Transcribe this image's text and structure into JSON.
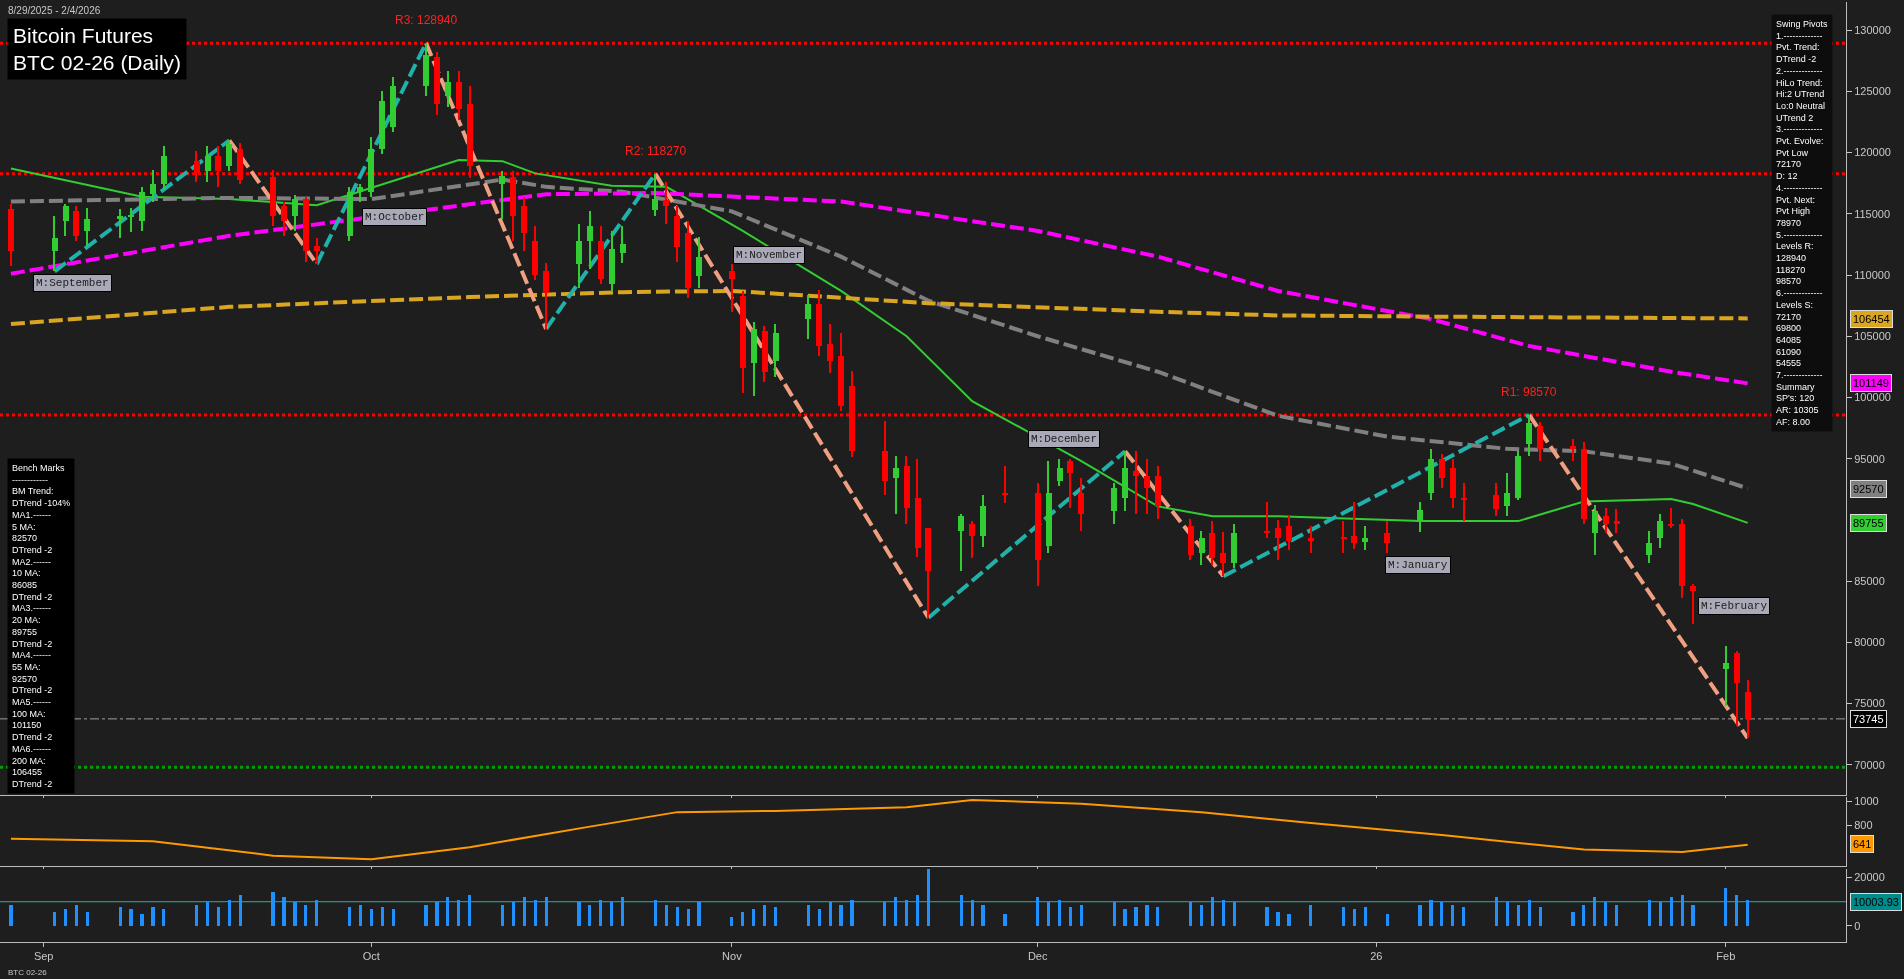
{
  "chart_data": [
    {
      "type": "candlestick",
      "title": "Bitcoin Futures",
      "subtitle": "BTC 02-26 (Daily)",
      "x": [
        "2025-08-29",
        "2025-09-02",
        "2025-09-03",
        "2025-09-04",
        "2025-09-05",
        "2025-09-08",
        "2025-09-09",
        "2025-09-10",
        "2025-09-11",
        "2025-09-12",
        "2025-09-15",
        "2025-09-16",
        "2025-09-17",
        "2025-09-18",
        "2025-09-19",
        "2025-09-22",
        "2025-09-23",
        "2025-09-24",
        "2025-09-25",
        "2025-09-26",
        "2025-09-29",
        "2025-09-30",
        "2025-10-01",
        "2025-10-02",
        "2025-10-03",
        "2025-10-06",
        "2025-10-07",
        "2025-10-08",
        "2025-10-09",
        "2025-10-10",
        "2025-10-13",
        "2025-10-14",
        "2025-10-15",
        "2025-10-16",
        "2025-10-17",
        "2025-10-20",
        "2025-10-21",
        "2025-10-22",
        "2025-10-23",
        "2025-10-24",
        "2025-10-27",
        "2025-10-28",
        "2025-10-29",
        "2025-10-30",
        "2025-10-31",
        "2025-11-03",
        "2025-11-04",
        "2025-11-05",
        "2025-11-06",
        "2025-11-07",
        "2025-11-10",
        "2025-11-11",
        "2025-11-12",
        "2025-11-13",
        "2025-11-14",
        "2025-11-17",
        "2025-11-18",
        "2025-11-19",
        "2025-11-20",
        "2025-11-21",
        "2025-11-24",
        "2025-11-25",
        "2025-11-26",
        "2025-11-28",
        "2025-12-01",
        "2025-12-02",
        "2025-12-03",
        "2025-12-04",
        "2025-12-05",
        "2025-12-08",
        "2025-12-09",
        "2025-12-10",
        "2025-12-11",
        "2025-12-12",
        "2025-12-15",
        "2025-12-16",
        "2025-12-17",
        "2025-12-18",
        "2025-12-19",
        "2025-12-22",
        "2025-12-23",
        "2025-12-24",
        "2025-12-26",
        "2025-12-29",
        "2025-12-30",
        "2025-12-31",
        "2026-01-02",
        "2026-01-05",
        "2026-01-06",
        "2026-01-07",
        "2026-01-08",
        "2026-01-09",
        "2026-01-12",
        "2026-01-13",
        "2026-01-14",
        "2026-01-15",
        "2026-01-16",
        "2026-01-19",
        "2026-01-20",
        "2026-01-21",
        "2026-01-22",
        "2026-01-23",
        "2026-01-26",
        "2026-01-27",
        "2026-01-28",
        "2026-01-29",
        "2026-01-30",
        "2026-02-02",
        "2026-02-03",
        "2026-02-04"
      ],
      "ohlc": [
        [
          115400,
          115800,
          110700,
          112000
        ],
        [
          112000,
          114800,
          110300,
          113000
        ],
        [
          114400,
          115800,
          113200,
          115600
        ],
        [
          115200,
          115600,
          112800,
          113200
        ],
        [
          113600,
          115500,
          112400,
          114600
        ],
        [
          114600,
          115400,
          113000,
          114800
        ],
        [
          114700,
          115500,
          113500,
          114900
        ],
        [
          114400,
          117200,
          113600,
          116800
        ],
        [
          116600,
          118600,
          116000,
          117400
        ],
        [
          117400,
          120500,
          117000,
          119700
        ],
        [
          119300,
          120100,
          117600,
          118300
        ],
        [
          118500,
          120500,
          117600,
          119700
        ],
        [
          119700,
          120500,
          117200,
          118500
        ],
        [
          118900,
          121000,
          118500,
          120700
        ],
        [
          120300,
          120800,
          117400,
          117800
        ],
        [
          118000,
          118600,
          114000,
          114800
        ],
        [
          115600,
          116000,
          113200,
          114400
        ],
        [
          114800,
          116500,
          113600,
          116200
        ],
        [
          116200,
          116400,
          111100,
          112000
        ],
        [
          112400,
          113000,
          110900,
          112000
        ],
        [
          113200,
          117200,
          112800,
          116800
        ],
        [
          116800,
          117400,
          116000,
          117200
        ],
        [
          116800,
          121300,
          116400,
          120300
        ],
        [
          120300,
          125000,
          119900,
          124200
        ],
        [
          122100,
          126200,
          121700,
          125400
        ],
        [
          125400,
          128940,
          124600,
          128000
        ],
        [
          127800,
          128200,
          123100,
          124000
        ],
        [
          124600,
          126700,
          123700,
          125800
        ],
        [
          125800,
          126700,
          122700,
          123600
        ],
        [
          124000,
          125400,
          117900,
          118900
        ],
        [
          117400,
          118500,
          114600,
          118100
        ],
        [
          118000,
          118500,
          112800,
          114800
        ],
        [
          115600,
          116400,
          112000,
          113400
        ],
        [
          112800,
          114000,
          109600,
          110000
        ],
        [
          110300,
          111000,
          105600,
          108500
        ],
        [
          110900,
          114200,
          108900,
          112800
        ],
        [
          112800,
          115200,
          110500,
          114000
        ],
        [
          112800,
          114000,
          109300,
          109700
        ],
        [
          109300,
          113600,
          108600,
          112100
        ],
        [
          111800,
          114000,
          111000,
          112500
        ],
        [
          115300,
          118270,
          114800,
          116200
        ],
        [
          116100,
          117600,
          114200,
          115600
        ],
        [
          114800,
          115600,
          111100,
          112300
        ],
        [
          113400,
          114400,
          108100,
          108900
        ],
        [
          109900,
          113100,
          108900,
          111500
        ],
        [
          110300,
          110900,
          107000,
          109700
        ],
        [
          108300,
          108700,
          100400,
          102400
        ],
        [
          102800,
          106200,
          100100,
          105600
        ],
        [
          105400,
          105800,
          101300,
          102100
        ],
        [
          103000,
          106000,
          101700,
          105300
        ],
        [
          106400,
          108400,
          104800,
          107600
        ],
        [
          107600,
          108800,
          103400,
          104200
        ],
        [
          104400,
          106000,
          102000,
          103000
        ],
        [
          103400,
          105300,
          98900,
          99300
        ],
        [
          100900,
          102200,
          95100,
          95600
        ],
        [
          95600,
          98100,
          92000,
          93200
        ],
        [
          93400,
          95200,
          90500,
          94200
        ],
        [
          94400,
          95200,
          89700,
          91000
        ],
        [
          91800,
          95000,
          87000,
          87700
        ],
        [
          89300,
          89300,
          82000,
          85800
        ],
        [
          89100,
          90500,
          85800,
          90300
        ],
        [
          89700,
          89900,
          86900,
          88700
        ],
        [
          88700,
          92000,
          87800,
          91100
        ],
        [
          92200,
          94400,
          91400,
          92100
        ],
        [
          92200,
          93000,
          84600,
          86700
        ],
        [
          87900,
          94800,
          87300,
          92200
        ],
        [
          93200,
          95000,
          92800,
          94200
        ],
        [
          94800,
          95000,
          91000,
          93800
        ],
        [
          92200,
          93400,
          89100,
          90500
        ],
        [
          90700,
          93000,
          89700,
          92600
        ],
        [
          91800,
          95600,
          90700,
          94200
        ],
        [
          94000,
          95600,
          90500,
          93600
        ],
        [
          93600,
          95000,
          90500,
          92600
        ],
        [
          93600,
          94400,
          90100,
          91100
        ],
        [
          89500,
          90100,
          86700,
          87100
        ],
        [
          87300,
          89100,
          86300,
          88500
        ],
        [
          88900,
          89900,
          86300,
          86900
        ],
        [
          87300,
          89000,
          85400,
          86500
        ],
        [
          86500,
          89700,
          86100,
          88900
        ],
        [
          89100,
          91500,
          88500,
          88900
        ],
        [
          89300,
          90000,
          86700,
          88500
        ],
        [
          89500,
          90300,
          87500,
          88300
        ],
        [
          88500,
          89500,
          87300,
          88300
        ],
        [
          88600,
          89900,
          87300,
          88400
        ],
        [
          88700,
          91500,
          87600,
          88100
        ],
        [
          88200,
          89500,
          87500,
          88500
        ],
        [
          88900,
          89900,
          87300,
          88100
        ],
        [
          89800,
          91500,
          89000,
          90800
        ],
        [
          92200,
          95800,
          91600,
          95000
        ],
        [
          95000,
          95400,
          92600,
          93400
        ],
        [
          94200,
          95000,
          91000,
          91800
        ],
        [
          91800,
          93000,
          89900,
          91600
        ],
        [
          92000,
          93000,
          90300,
          90900
        ],
        [
          91100,
          93800,
          90300,
          92200
        ],
        [
          91800,
          95600,
          91600,
          95200
        ],
        [
          96200,
          98570,
          95200,
          97900
        ],
        [
          97700,
          98000,
          94800,
          95800
        ],
        [
          96000,
          96600,
          94800,
          95800
        ],
        [
          95800,
          96400,
          89700,
          90100
        ],
        [
          88900,
          91200,
          87100,
          90700
        ],
        [
          90300,
          91000,
          88900,
          89700
        ],
        [
          89900,
          90900,
          88900,
          89700
        ],
        [
          87100,
          89100,
          86500,
          88100
        ],
        [
          88500,
          90500,
          87700,
          89900
        ],
        [
          89700,
          91000,
          89300,
          89500
        ],
        [
          89700,
          90100,
          83600,
          84600
        ],
        [
          84600,
          84800,
          81500,
          84200
        ],
        [
          77800,
          79700,
          74800,
          78300
        ],
        [
          79100,
          79300,
          73200,
          76700
        ],
        [
          75900,
          76900,
          72170,
          73745
        ]
      ],
      "colors": [
        "#ff0000",
        "#32cd32",
        "#32cd32",
        "#ff0000",
        "#32cd32",
        "#32cd32",
        "#32cd32",
        "#32cd32",
        "#32cd32",
        "#32cd32",
        "#ff0000",
        "#32cd32",
        "#ff0000",
        "#32cd32",
        "#ff0000",
        "#ff0000",
        "#ff0000",
        "#32cd32",
        "#ff0000",
        "#ff0000",
        "#32cd32",
        "#32cd32",
        "#32cd32",
        "#32cd32",
        "#32cd32",
        "#32cd32",
        "#ff0000",
        "#32cd32",
        "#ff0000",
        "#ff0000",
        "#32cd32",
        "#ff0000",
        "#ff0000",
        "#ff0000",
        "#ff0000",
        "#32cd32",
        "#32cd32",
        "#ff0000",
        "#32cd32",
        "#32cd32",
        "#32cd32",
        "#ff0000",
        "#ff0000",
        "#ff0000",
        "#32cd32",
        "#ff0000",
        "#ff0000",
        "#32cd32",
        "#ff0000",
        "#32cd32",
        "#32cd32",
        "#ff0000",
        "#ff0000",
        "#ff0000",
        "#ff0000",
        "#ff0000",
        "#32cd32",
        "#ff0000",
        "#ff0000",
        "#ff0000",
        "#32cd32",
        "#ff0000",
        "#32cd32",
        "#ff0000",
        "#ff0000",
        "#32cd32",
        "#32cd32",
        "#ff0000",
        "#ff0000",
        "#32cd32",
        "#32cd32",
        "#ff0000",
        "#ff0000",
        "#ff0000",
        "#ff0000",
        "#32cd32",
        "#ff0000",
        "#ff0000",
        "#32cd32",
        "#ff0000",
        "#ff0000",
        "#ff0000",
        "#ff0000",
        "#ff0000",
        "#ff0000",
        "#32cd32",
        "#ff0000",
        "#32cd32",
        "#32cd32",
        "#ff0000",
        "#ff0000",
        "#ff0000",
        "#ff0000",
        "#32cd32",
        "#32cd32",
        "#32cd32",
        "#ff0000",
        "#ff0000",
        "#ff0000",
        "#32cd32",
        "#ff0000",
        "#ff0000",
        "#32cd32",
        "#32cd32",
        "#ff0000",
        "#ff0000",
        "#ff0000",
        "#32cd32",
        "#ff0000",
        "#ff0000"
      ],
      "series": [
        {
          "type": "line",
          "color": "#32cd32",
          "line_style": "solid",
          "x": [
            "2025-08-29",
            "2025-09-10",
            "2025-09-18",
            "2025-09-26",
            "2025-10-09",
            "2025-10-13",
            "2025-10-16",
            "2025-10-23",
            "2025-10-28",
            "2025-11-04",
            "2025-11-13",
            "2025-11-19",
            "2025-11-25",
            "2025-12-05",
            "2025-12-12",
            "2025-12-17",
            "2025-12-23",
            "2026-01-05",
            "2026-01-14",
            "2026-01-20",
            "2026-01-28",
            "2026-01-30",
            "2026-02-04"
          ],
          "values": [
            118700,
            116400,
            116200,
            115700,
            119400,
            119300,
            118300,
            117300,
            117200,
            113600,
            108700,
            105000,
            99700,
            94800,
            91100,
            90300,
            90300,
            89900,
            89900,
            91500,
            91700,
            91300,
            89755
          ]
        },
        {
          "type": "line",
          "color": "#808080",
          "line_style": "dashed",
          "x": [
            "2025-08-29",
            "2025-09-18",
            "2025-10-01",
            "2025-10-13",
            "2025-10-17",
            "2025-10-24",
            "2025-11-03",
            "2025-11-13",
            "2025-11-21",
            "2025-12-01",
            "2025-12-12",
            "2025-12-23",
            "2026-01-02",
            "2026-01-13",
            "2026-01-20",
            "2026-01-28",
            "2026-02-04"
          ],
          "values": [
            116000,
            116300,
            116200,
            117800,
            117200,
            116800,
            115200,
            111500,
            107900,
            105000,
            102100,
            98500,
            96800,
            95800,
            95600,
            94600,
            92570
          ]
        },
        {
          "type": "line",
          "color": "#ff00ff",
          "line_style": "dashed",
          "x": [
            "2025-08-29",
            "2025-09-18",
            "2025-10-17",
            "2025-10-27",
            "2025-11-13",
            "2025-12-01",
            "2025-12-12",
            "2025-12-23",
            "2026-01-06",
            "2026-01-15",
            "2026-01-28",
            "2026-02-04"
          ],
          "values": [
            110100,
            113200,
            116600,
            116700,
            116000,
            113600,
            111500,
            108700,
            106400,
            104200,
            102100,
            101149
          ]
        },
        {
          "type": "line",
          "color": "#daa520",
          "line_style": "dashed",
          "x": [
            "2025-08-29",
            "2025-09-18",
            "2025-10-10",
            "2025-10-24",
            "2025-11-03",
            "2025-11-21",
            "2025-12-12",
            "2025-12-23",
            "2026-01-06",
            "2026-02-04"
          ],
          "values": [
            106000,
            107400,
            108200,
            108600,
            108700,
            107700,
            107000,
            106700,
            106600,
            106454
          ]
        },
        {
          "type": "line",
          "color": "#20b2aa",
          "line_style": "dashed",
          "x": [
            "2025-09-02",
            "2025-09-18",
            "2025-09-22",
            "2025-09-26",
            "2025-10-06",
            "2025-10-10",
            "2025-10-17",
            "2025-10-27",
            "2025-11-03",
            "2025-11-21",
            "2025-12-09",
            "2025-12-12",
            "2025-12-18",
            "2026-01-15"
          ],
          "values": [
            110300,
            121000,
            null,
            110900,
            128940,
            null,
            105600,
            118270,
            null,
            82000,
            95600,
            null,
            85400,
            98570
          ]
        },
        {
          "type": "line",
          "color": "#f0a080",
          "line_style": "dashed",
          "x": [
            "2025-09-18",
            "2025-09-26",
            "2025-09-29",
            "2025-10-06",
            "2025-10-17",
            "2025-10-20",
            "2025-10-27",
            "2025-11-21",
            "2025-11-24",
            "2025-12-09",
            "2025-12-18",
            "2025-12-22",
            "2026-01-15",
            "2026-02-04"
          ],
          "values": [
            121000,
            110900,
            null,
            128940,
            105600,
            null,
            118270,
            82000,
            null,
            95600,
            85400,
            null,
            98570,
            72170
          ]
        }
      ],
      "ref_lines": [
        {
          "axis": "y",
          "value": 128940,
          "color": "#ff0000",
          "line_style": "dotted"
        },
        {
          "axis": "y",
          "value": 118270,
          "color": "#ff0000",
          "line_style": "dotted"
        },
        {
          "axis": "y",
          "value": 98570,
          "color": "#ff0000",
          "line_style": "dotted"
        },
        {
          "axis": "y",
          "value": 73745,
          "color": "#a0a0a0",
          "line_style": "dashdot"
        },
        {
          "axis": "y",
          "value": 69800,
          "color": "#00a000",
          "line_style": "dotted"
        }
      ],
      "annotations": [
        "8/29/2025 - 2/4/2026",
        "Bench Marks\n------------\nBM Trend:\nDTrend -104%\nMA1.------\n5 MA:\n82570\nDTrend -2\nMA2.------\n10 MA:\n86085\nDTrend -2\nMA3.------\n20 MA:\n89755\nDTrend -2\nMA4.------\n55 MA:\n92570\nDTrend -2\nMA5.------\n100 MA:\n101150\nDTrend -2\nMA6.------\n200 MA:\n106455\nDTrend -2",
        "Swing Pivots\n1.-------------\nPvt. Trend:\nDTrend -2\n2.-------------\nHiLo Trend:\nHi:2 UTrend\nLo:0 Neutral\nUTrend 2\n3.-------------\nPvt. Evolve:\nPvt Low\n72170\nD: 12\n4.-------------\nPvt. Next:\nPvt High\n78970\n5.-------------\nLevels R:\n128940\n118270\n98570\n6.-------------\nLevels S:\n72170\n69800\n64085\n61090\n54555\n7.-------------\nSummary\nSP's: 120\nAR: 10305\nAF: 8.00",
        "BTC 02-26",
        "M:September",
        "M:October",
        "M:November",
        "M:December",
        "M:January",
        "M:February",
        "106454",
        "101149",
        "92570",
        "89755",
        "73745",
        {
          "text": "R3: 128940",
          "x": "2025-10-06",
          "y": 128940
        },
        {
          "text": "R2: 118270",
          "x": "2025-10-27",
          "y": 118270
        },
        {
          "text": "R1: 98570",
          "x": "2026-01-15",
          "y": 98570
        }
      ],
      "xlim": [
        "2025-08-28",
        "2026-02-13"
      ],
      "xticks": [
        {
          "value": "2025-09-01",
          "label": null
        },
        {
          "value": "2025-10-01",
          "label": null
        },
        {
          "value": "2025-11-03",
          "label": null
        },
        {
          "value": "2025-12-01",
          "label": null
        },
        {
          "value": "2026-01-01",
          "label": null
        },
        {
          "value": "2026-02-02",
          "label": null
        }
      ],
      "ylim": [
        67500,
        132300
      ],
      "yticks": [
        70000,
        75000,
        80000,
        85000,
        95000,
        100000,
        105000,
        110000,
        115000,
        120000,
        125000,
        130000
      ],
      "tick_labels": "y",
      "grid": false
    },
    {
      "type": "line",
      "x": [
        "2025-08-29",
        "2025-09-11",
        "2025-09-22",
        "2025-10-01",
        "2025-10-10",
        "2025-10-21",
        "2025-10-29",
        "2025-11-07",
        "2025-11-19",
        "2025-11-25",
        "2025-12-05",
        "2025-12-16",
        "2025-12-26",
        "2026-01-07",
        "2026-01-20",
        "2026-01-29",
        "2026-02-04"
      ],
      "series": [
        {
          "color": "#ff9900",
          "values": [
            690,
            670,
            550,
            520,
            620,
            790,
            910,
            920,
            950,
            1010,
            980,
            910,
            820,
            720,
            600,
            580,
            641
          ]
        }
      ],
      "annotations": [
        "641"
      ],
      "xlim": [
        "2025-08-28",
        "2026-02-13"
      ],
      "xticks": [
        {
          "value": "2025-09-01",
          "label": null
        },
        {
          "value": "2025-10-01",
          "label": null
        },
        {
          "value": "2025-11-03",
          "label": null
        },
        {
          "value": "2025-12-01",
          "label": null
        },
        {
          "value": "2026-01-01",
          "label": null
        },
        {
          "value": "2026-02-02",
          "label": null
        }
      ],
      "ylim": [
        467,
        1033
      ],
      "yticks": [
        800,
        1000
      ],
      "tick_labels": "y",
      "grid": false
    },
    {
      "type": "bar",
      "x": [
        "2025-08-29",
        "2025-09-02",
        "2025-09-03",
        "2025-09-04",
        "2025-09-05",
        "2025-09-08",
        "2025-09-09",
        "2025-09-10",
        "2025-09-11",
        "2025-09-12",
        "2025-09-15",
        "2025-09-16",
        "2025-09-17",
        "2025-09-18",
        "2025-09-19",
        "2025-09-22",
        "2025-09-23",
        "2025-09-24",
        "2025-09-25",
        "2025-09-26",
        "2025-09-29",
        "2025-09-30",
        "2025-10-01",
        "2025-10-02",
        "2025-10-03",
        "2025-10-06",
        "2025-10-07",
        "2025-10-08",
        "2025-10-09",
        "2025-10-10",
        "2025-10-13",
        "2025-10-14",
        "2025-10-15",
        "2025-10-16",
        "2025-10-17",
        "2025-10-20",
        "2025-10-21",
        "2025-10-22",
        "2025-10-23",
        "2025-10-24",
        "2025-10-27",
        "2025-10-28",
        "2025-10-29",
        "2025-10-30",
        "2025-10-31",
        "2025-11-03",
        "2025-11-04",
        "2025-11-05",
        "2025-11-06",
        "2025-11-07",
        "2025-11-10",
        "2025-11-11",
        "2025-11-12",
        "2025-11-13",
        "2025-11-14",
        "2025-11-17",
        "2025-11-18",
        "2025-11-19",
        "2025-11-20",
        "2025-11-21",
        "2025-11-24",
        "2025-11-25",
        "2025-11-26",
        "2025-11-28",
        "2025-12-01",
        "2025-12-02",
        "2025-12-03",
        "2025-12-04",
        "2025-12-05",
        "2025-12-08",
        "2025-12-09",
        "2025-12-10",
        "2025-12-11",
        "2025-12-12",
        "2025-12-15",
        "2025-12-16",
        "2025-12-17",
        "2025-12-18",
        "2025-12-19",
        "2025-12-22",
        "2025-12-23",
        "2025-12-24",
        "2025-12-26",
        "2025-12-29",
        "2025-12-30",
        "2025-12-31",
        "2026-01-02",
        "2026-01-05",
        "2026-01-06",
        "2026-01-07",
        "2026-01-08",
        "2026-01-09",
        "2026-01-12",
        "2026-01-13",
        "2026-01-14",
        "2026-01-15",
        "2026-01-16",
        "2026-01-19",
        "2026-01-20",
        "2026-01-21",
        "2026-01-22",
        "2026-01-23",
        "2026-01-26",
        "2026-01-27",
        "2026-01-28",
        "2026-01-29",
        "2026-01-30",
        "2026-02-02",
        "2026-02-03",
        "2026-02-04"
      ],
      "series": [
        {
          "color": "#1e90ff",
          "values": [
            9000,
            6000,
            7000,
            9000,
            6000,
            8000,
            7000,
            5000,
            8000,
            7000,
            9000,
            10000,
            8000,
            11000,
            13000,
            14000,
            12000,
            10000,
            9000,
            11000,
            8000,
            9000,
            7000,
            8000,
            7000,
            9000,
            10000,
            12000,
            11000,
            13000,
            9000,
            10000,
            12000,
            11000,
            12000,
            10000,
            9000,
            11000,
            10000,
            12000,
            11000,
            9000,
            8000,
            7000,
            10000,
            4000,
            6000,
            7000,
            9000,
            8000,
            9000,
            7000,
            10000,
            9000,
            11000,
            10000,
            12000,
            11000,
            13000,
            23500,
            13000,
            11000,
            9000,
            5000,
            12000,
            10000,
            11000,
            8000,
            9000,
            10000,
            7000,
            8000,
            9000,
            8000,
            10000,
            9000,
            12000,
            11000,
            10000,
            8000,
            6000,
            5000,
            9000,
            8000,
            7000,
            8000,
            5000,
            9000,
            11000,
            10000,
            9000,
            8000,
            12000,
            10000,
            9000,
            11000,
            8000,
            6000,
            9000,
            12000,
            10000,
            9000,
            11000,
            10000,
            12000,
            13000,
            9000,
            16000,
            13000,
            11000
          ]
        }
      ],
      "ref_lines": [
        {
          "axis": "y",
          "value": 10003.93,
          "color": "#20b2aa",
          "line_style": "solid"
        }
      ],
      "annotations": [
        "10003.93"
      ],
      "xlim": [
        "2025-08-28",
        "2026-02-13"
      ],
      "xticks": [
        {
          "value": "2025-09-01",
          "label": "Sep"
        },
        {
          "value": "2025-10-01",
          "label": "Oct"
        },
        {
          "value": "2025-11-03",
          "label": "Nov"
        },
        {
          "value": "2025-12-01",
          "label": "Dec"
        },
        {
          "value": "2026-01-01",
          "label": "26"
        },
        {
          "value": "2026-02-02",
          "label": "Feb"
        }
      ],
      "ylim": [
        -6600,
        23700
      ],
      "yticks": [
        0,
        20000
      ],
      "grid": false
    }
  ]
}
